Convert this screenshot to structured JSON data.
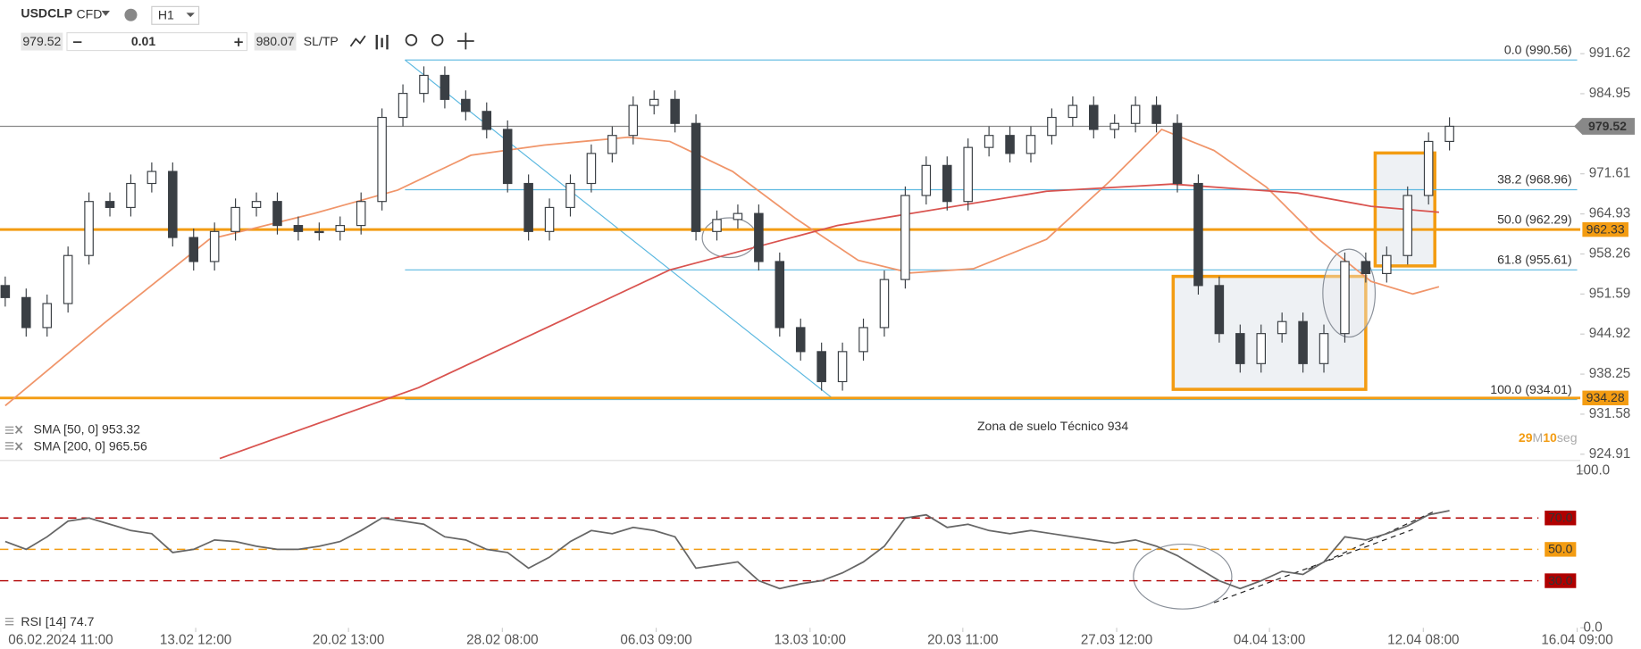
{
  "header": {
    "symbol": "USDCLP",
    "instrument": "CFD",
    "timeframe": "H1",
    "bid": "979.52",
    "volume": "0.01",
    "ask": "980.07",
    "sltp": "SL/TP"
  },
  "chart_data": [
    {
      "type": "candlestick",
      "open": [
        953,
        951,
        946,
        950,
        958,
        967,
        966,
        970,
        972,
        961,
        957,
        962,
        966,
        967,
        963,
        962,
        962,
        963,
        967,
        981,
        985,
        988,
        984,
        982,
        979,
        970,
        962,
        966,
        970,
        975,
        978,
        983,
        984,
        980,
        962,
        964,
        965,
        957,
        946,
        942,
        937,
        942,
        946,
        954,
        968,
        973,
        967,
        976,
        978,
        975,
        978,
        981,
        983,
        979,
        980,
        983,
        980,
        970,
        953,
        945,
        940,
        945,
        947,
        940,
        945,
        957,
        955,
        958,
        968,
        977
      ],
      "high": [
        954.5,
        952.5,
        951.5,
        959.5,
        968.5,
        968.5,
        971.5,
        973.5,
        973.5,
        962.5,
        963.5,
        967.5,
        968.5,
        968.5,
        964.5,
        963.5,
        964.5,
        968.5,
        982.5,
        986.5,
        989.5,
        989.5,
        985.5,
        983.5,
        980.5,
        971.5,
        967.5,
        971.5,
        976.5,
        979.5,
        984.5,
        985.5,
        985.5,
        981.5,
        965.5,
        966.5,
        966.5,
        958.5,
        947.5,
        943.5,
        943.5,
        947.5,
        955.5,
        969.5,
        974.5,
        974.5,
        977.5,
        979.5,
        979.5,
        979.5,
        982.5,
        984.5,
        984.5,
        981.5,
        984.5,
        984.5,
        981.5,
        971.5,
        954.5,
        946.5,
        946.5,
        948.5,
        948.5,
        946.5,
        958.5,
        958.5,
        959.5,
        969.5,
        978.5,
        981.02
      ],
      "low": [
        949.5,
        944.5,
        944.5,
        948.5,
        956.5,
        964.5,
        964.5,
        968.5,
        959.5,
        955.5,
        955.5,
        960.5,
        964.5,
        961.5,
        960.5,
        960.5,
        960.5,
        961.5,
        965.5,
        979.5,
        983.5,
        982.5,
        980.5,
        977.5,
        968.5,
        960.5,
        960.5,
        964.5,
        968.5,
        973.5,
        976.5,
        981.5,
        978.5,
        960.5,
        960.5,
        962.5,
        955.5,
        944.5,
        940.5,
        935.5,
        935.5,
        940.5,
        944.5,
        952.5,
        966.5,
        965.5,
        965.5,
        974.5,
        973.5,
        973.5,
        976.5,
        979.5,
        977.5,
        977.5,
        978.5,
        978.5,
        968.5,
        951.5,
        943.5,
        938.5,
        938.5,
        943.5,
        938.5,
        938.5,
        943.5,
        953.5,
        953.5,
        956.5,
        966.5,
        975.5
      ],
      "close": [
        951,
        946,
        950,
        958,
        967,
        966,
        970,
        972,
        961,
        957,
        962,
        966,
        967,
        963,
        962,
        962,
        963,
        967,
        981,
        985,
        988,
        984,
        982,
        979,
        970,
        962,
        966,
        970,
        975,
        978,
        983,
        984,
        980,
        962,
        964,
        965,
        957,
        946,
        942,
        937,
        942,
        946,
        954,
        968,
        973,
        967,
        976,
        978,
        975,
        978,
        981,
        983,
        979,
        980,
        983,
        980,
        970,
        953,
        945,
        940,
        945,
        947,
        940,
        945,
        957,
        955,
        958,
        968,
        977,
        979.52
      ],
      "up_color": "#ffffff",
      "down_color": "#3a3f44",
      "edge_color": "#3a3f44",
      "xlim": [
        -0.25,
        75.25
      ],
      "ylim": [
        923.87,
        993.54
      ],
      "yticks": [
        991.62,
        984.95,
        971.61,
        964.93,
        958.26,
        951.59,
        944.92,
        938.25,
        931.58,
        924.91
      ],
      "series": [
        {
          "name": "SMA [50, 0] 953.32",
          "color": "#f0956a",
          "x": [
            0,
            4.75,
            9.75,
            14.75,
            18.75,
            22.25,
            25.75,
            29.75,
            31.75,
            34.75,
            37.75,
            40.75,
            43.25,
            46.25,
            49.75,
            52.75,
            55.25,
            57.75,
            60.25,
            62.75,
            65.25,
            67.25,
            68.5
          ],
          "values": [
            933,
            946.8,
            960.7,
            965,
            968.9,
            974.7,
            976.4,
            977.7,
            977,
            972,
            964.2,
            957.2,
            955.1,
            955.8,
            960.7,
            970.3,
            979,
            975.5,
            969.4,
            960.7,
            953.7,
            951.6,
            952.8
          ]
        },
        {
          "name": "SMA [200, 0] 965.56",
          "color": "#d9534f",
          "x": [
            10.25,
            19.75,
            31.75,
            39.75,
            49.75,
            55.75,
            61.75,
            65.25,
            68.5
          ],
          "values": [
            924.2,
            936,
            955.6,
            963,
            968.7,
            969.9,
            968.4,
            966.2,
            965.2
          ]
        }
      ],
      "fib_color": "#5bb8e0",
      "fib_start": 19.1,
      "fib_levels": [
        {
          "label": "0.0 (990.56)",
          "value": 990.56
        },
        {
          "label": "38.2 (968.96)",
          "value": 968.96
        },
        {
          "label": "50.0 (962.29)",
          "value": 962.29
        },
        {
          "label": "61.8 (955.61)",
          "value": 955.61
        },
        {
          "label": "100.0 (934.01)",
          "value": 934.01
        }
      ],
      "trendline": {
        "x": [
          19.1,
          39.6
        ],
        "values": [
          990.56,
          934.01
        ]
      },
      "levels": [
        {
          "value": 962.33,
          "color": "#f39c12"
        },
        {
          "value": 934.28,
          "color": "#f39c12"
        }
      ],
      "last_price": {
        "value": 979.52,
        "color": "#888888"
      },
      "annotation": "Zona de suelo Técnico 934",
      "timer": {
        "minutes": "29",
        "m": "M",
        "seconds": "10",
        "s": "seg"
      }
    },
    {
      "type": "line",
      "name": "RSI [14] 74.7",
      "color": "#666666",
      "values": [
        55,
        50,
        58,
        68,
        70,
        66,
        62,
        60,
        48,
        50,
        56,
        55,
        52,
        50,
        50,
        52,
        55,
        62,
        70,
        68,
        66,
        58,
        56,
        50,
        48,
        38,
        45,
        55,
        62,
        60,
        64,
        62,
        58,
        38,
        40,
        42,
        30,
        25,
        28,
        30,
        35,
        42,
        52,
        70,
        72,
        64,
        66,
        62,
        60,
        62,
        60,
        58,
        56,
        54,
        56,
        52,
        46,
        38,
        30,
        25,
        30,
        36,
        34,
        42,
        58,
        56,
        60,
        65,
        72,
        74.7
      ],
      "xlim": [
        -0.25,
        75.25
      ],
      "ylim": [
        0,
        100
      ],
      "yticks": [
        {
          "value": 100,
          "label": "100.0"
        },
        {
          "value": 0,
          "label": "0.0"
        }
      ],
      "levels": [
        {
          "value": 70,
          "label": "70.0",
          "color": "#b00000"
        },
        {
          "value": 50,
          "label": "50.0",
          "color": "#f39c12"
        },
        {
          "value": 30,
          "label": "30.0",
          "color": "#b00000"
        }
      ],
      "xticks": [
        {
          "value": 2.65,
          "label": "06.02.2024 11:00"
        },
        {
          "value": 9.1,
          "label": "13.02 12:00"
        },
        {
          "value": 16.4,
          "label": "20.02 13:00"
        },
        {
          "value": 23.75,
          "label": "28.02 08:00"
        },
        {
          "value": 31.1,
          "label": "06.03 09:00"
        },
        {
          "value": 38.45,
          "label": "13.03 10:00"
        },
        {
          "value": 45.75,
          "label": "20.03 11:00"
        },
        {
          "value": 53.1,
          "label": "27.03 12:00"
        },
        {
          "value": 60.4,
          "label": "04.04 13:00"
        },
        {
          "value": 67.75,
          "label": "12.04 08:00"
        },
        {
          "value": 75.1,
          "label": "16.04 09:00"
        }
      ]
    }
  ]
}
